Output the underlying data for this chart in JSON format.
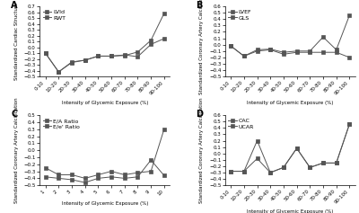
{
  "panel_A": {
    "label": "A",
    "xlabel": "Intensity of Glycemic Exposure (%)",
    "ylabel": "Standardized Cardiac Structure",
    "x_labels": [
      "0-10",
      "10-20",
      "20-30",
      "30-40",
      "40-50",
      "50-60",
      "60-70",
      "70-80",
      "80-90",
      "90-100"
    ],
    "series": [
      {
        "name": "LVId",
        "y": [
          -0.1,
          -0.42,
          -0.25,
          -0.22,
          -0.15,
          -0.15,
          -0.13,
          -0.16,
          0.05,
          0.15
        ]
      },
      {
        "name": "RWT",
        "y": [
          -0.1,
          -0.42,
          -0.26,
          -0.22,
          -0.15,
          -0.15,
          -0.14,
          -0.08,
          0.12,
          0.58
        ]
      }
    ],
    "ylim": [
      -0.5,
      0.7
    ],
    "yticks": [
      -0.5,
      -0.4,
      -0.3,
      -0.2,
      -0.1,
      0.0,
      0.1,
      0.2,
      0.3,
      0.4,
      0.5,
      0.6,
      0.7
    ]
  },
  "panel_B": {
    "label": "B",
    "xlabel": "Intensity of Glycemic Exposure (%)",
    "ylabel": "Standardized Coronary Artery Calcification",
    "x_labels": [
      "0-10",
      "10-20",
      "20-30",
      "30-40",
      "40-50",
      "50-60",
      "60-70",
      "70-80",
      "80-90",
      "90-100"
    ],
    "series": [
      {
        "name": "LVEF",
        "y": [
          -0.02,
          -0.18,
          -0.1,
          -0.08,
          -0.15,
          -0.12,
          -0.12,
          -0.12,
          -0.12,
          -0.2
        ]
      },
      {
        "name": "GLS",
        "y": [
          -0.02,
          -0.18,
          -0.08,
          -0.07,
          -0.12,
          -0.1,
          -0.1,
          0.12,
          -0.08,
          0.46
        ]
      }
    ],
    "ylim": [
      -0.5,
      0.6
    ],
    "yticks": [
      -0.5,
      -0.4,
      -0.3,
      -0.2,
      -0.1,
      0.0,
      0.1,
      0.2,
      0.3,
      0.4,
      0.5,
      0.6
    ]
  },
  "panel_C": {
    "label": "C",
    "xlabel": "Intensity of Glycemic Exposure (%)",
    "ylabel": "Standardized Coronary Artery Calcification",
    "x_labels": [
      "1",
      "2",
      "3",
      "4",
      "5",
      "6",
      "7",
      "8",
      "9",
      "10"
    ],
    "series": [
      {
        "name": "E/A Ratio",
        "y": [
          -0.25,
          -0.35,
          -0.35,
          -0.4,
          -0.35,
          -0.3,
          -0.35,
          -0.32,
          -0.3,
          0.3
        ]
      },
      {
        "name": "E/e' Ratio",
        "y": [
          -0.38,
          -0.4,
          -0.42,
          -0.46,
          -0.4,
          -0.38,
          -0.4,
          -0.38,
          -0.14,
          -0.36
        ]
      }
    ],
    "ylim": [
      -0.5,
      0.5
    ],
    "yticks": [
      -0.5,
      -0.4,
      -0.3,
      -0.2,
      -0.1,
      0.0,
      0.1,
      0.2,
      0.3,
      0.4,
      0.5
    ]
  },
  "panel_D": {
    "label": "D",
    "xlabel": "Intensity of Glycemic Exposure (%)",
    "ylabel": "Standardized Coronary Artery Calcification",
    "x_labels": [
      "0-10",
      "10-20",
      "20-30",
      "30-40",
      "40-50",
      "50-60",
      "60-70",
      "70-80",
      "80-90",
      "90-100"
    ],
    "series": [
      {
        "name": "CAC",
        "y": [
          -0.28,
          -0.28,
          -0.08,
          -0.3,
          -0.22,
          0.08,
          -0.22,
          -0.15,
          -0.15,
          0.46
        ]
      },
      {
        "name": "UCAR",
        "y": [
          -0.28,
          -0.28,
          0.2,
          -0.3,
          -0.22,
          0.08,
          -0.22,
          -0.15,
          -0.15,
          0.46
        ]
      }
    ],
    "ylim": [
      -0.5,
      0.6
    ],
    "yticks": [
      -0.5,
      -0.4,
      -0.3,
      -0.2,
      -0.1,
      0.0,
      0.1,
      0.2,
      0.3,
      0.4,
      0.5,
      0.6
    ]
  },
  "line_color": "#555555",
  "marker": "s",
  "markersize": 2.5,
  "linewidth": 0.7,
  "tick_fontsize": 4,
  "label_fontsize": 4,
  "legend_fontsize": 4.5,
  "panel_label_fontsize": 7
}
